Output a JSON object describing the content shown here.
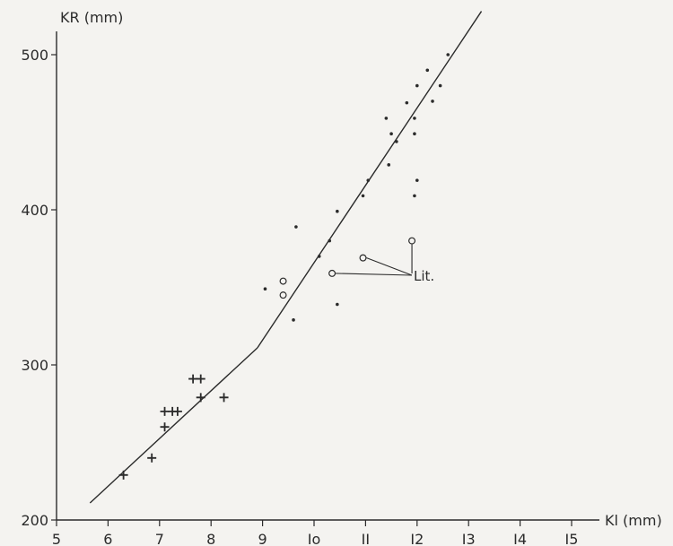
{
  "chart_data": {
    "type": "scatter",
    "xlabel": "Kl (mm)",
    "ylabel": "KR (mm)",
    "xlim": [
      5,
      15
    ],
    "ylim": [
      200,
      520
    ],
    "x_ticks": [
      5,
      6,
      7,
      8,
      9,
      10,
      11,
      12,
      13,
      14,
      15
    ],
    "x_tick_labels": [
      "5",
      "6",
      "7",
      "8",
      "9",
      "Io",
      "II",
      "I2",
      "I3",
      "I4",
      "I5"
    ],
    "y_ticks": [
      200,
      300,
      400,
      500
    ],
    "y_tick_labels": [
      "200",
      "300",
      "400",
      "500"
    ],
    "annotation": "Lit.",
    "grid": false,
    "series": [
      {
        "marker": "plus",
        "x": [
          6.3,
          6.85,
          7.1,
          7.1,
          7.25,
          7.35,
          7.65,
          7.8,
          7.8,
          8.25
        ],
        "y": [
          229,
          240,
          270,
          260,
          270,
          270,
          291,
          291,
          279,
          279
        ]
      },
      {
        "marker": "dot",
        "x": [
          9.05,
          9.6,
          9.65,
          10.1,
          10.3,
          10.45,
          10.45,
          10.95,
          11.05,
          11.4,
          11.45,
          11.5,
          11.6,
          11.8,
          11.95,
          11.95,
          11.95,
          12.0,
          12.0,
          12.2,
          12.3,
          12.45,
          12.6
        ],
        "y": [
          349,
          329,
          389,
          370,
          380,
          339,
          399,
          409,
          419,
          459,
          429,
          449,
          444,
          469,
          409,
          449,
          459,
          419,
          480,
          490,
          470,
          480,
          500
        ]
      },
      {
        "marker": "circle",
        "x": [
          9.4,
          9.4,
          10.35,
          10.95,
          11.9
        ],
        "y": [
          345,
          354,
          359,
          369,
          380
        ]
      }
    ],
    "regression_line": {
      "x": [
        5.65,
        8.9,
        13.25
      ],
      "y": [
        211,
        311,
        528
      ]
    }
  }
}
